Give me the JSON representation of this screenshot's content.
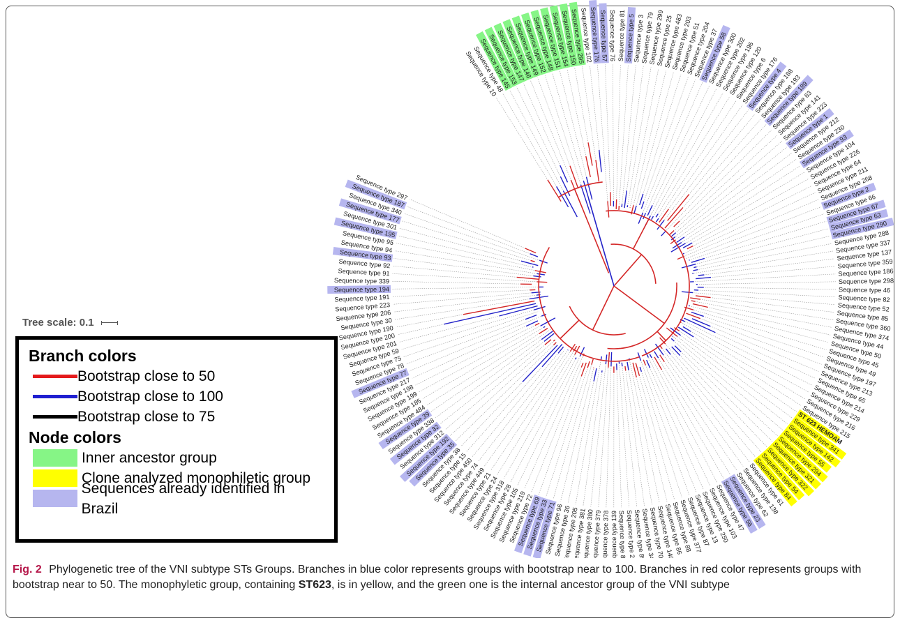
{
  "tree_scale_label": "Tree scale: 0.1",
  "legend": {
    "branch_title": "Branch colors",
    "branches": [
      {
        "label": "Bootstrap close to 50",
        "color": "#e41a1c"
      },
      {
        "label": "Bootstrap close to 100",
        "color": "#1f1fd0"
      },
      {
        "label": "Bootstrap close to 75",
        "color": "#000000"
      }
    ],
    "node_title": "Node colors",
    "nodes": [
      {
        "label": "Inner ancestor group",
        "color": "#86f586"
      },
      {
        "label": "Clone analyzed monophiletic group",
        "color": "#ffff00"
      },
      {
        "label": "Sequences already identified in Brazil",
        "color": "#b6b6ef"
      }
    ]
  },
  "caption": {
    "figure": "Fig. 2",
    "text_before": "Phylogenetic tree of the VNI subtype STs Groups. Branches in blue color represents groups with bootstrap near to 100. Branches in red color represents groups with bootstrap near to 50. The monophyletic group, containing ",
    "bold": "ST623",
    "text_after": ", is in yellow, and the green one is the internal ancestor group of the VNI subtype"
  },
  "colors": {
    "red_branch": "#d42828",
    "blue_branch": "#2323c8",
    "inner": "#86f586",
    "clone": "#ffff00",
    "brazil": "#b6b6ef"
  },
  "tips": [
    {
      "label": "Sequence type 10",
      "group": ""
    },
    {
      "label": "Sequence type 48",
      "group": ""
    },
    {
      "label": "Sequence type 145",
      "group": "inner"
    },
    {
      "label": "Sequence type 153",
      "group": "inner"
    },
    {
      "label": "Sequence type 147",
      "group": "inner"
    },
    {
      "label": "Sequence type 146",
      "group": "inner"
    },
    {
      "label": "Sequence type 149",
      "group": "inner"
    },
    {
      "label": "Sequence type 152",
      "group": "inner"
    },
    {
      "label": "Sequence type 148",
      "group": "inner"
    },
    {
      "label": "Sequence type 151",
      "group": "inner"
    },
    {
      "label": "Sequence type 154",
      "group": "inner"
    },
    {
      "label": "Sequence type 150",
      "group": "inner"
    },
    {
      "label": "Sequence type 295",
      "group": "inner"
    },
    {
      "label": "Sequence type 102",
      "group": ""
    },
    {
      "label": "Sequence type 176",
      "group": "brazil"
    },
    {
      "label": "Sequence type 57",
      "group": "brazil"
    },
    {
      "label": "Sequence type 76",
      "group": ""
    },
    {
      "label": "Sequence type 81",
      "group": ""
    },
    {
      "label": "Sequence type 5",
      "group": "brazil"
    },
    {
      "label": "Sequence type 3",
      "group": ""
    },
    {
      "label": "Sequence type 79",
      "group": ""
    },
    {
      "label": "Sequence type 299",
      "group": ""
    },
    {
      "label": "Sequence type 25",
      "group": ""
    },
    {
      "label": "Sequence type 483",
      "group": ""
    },
    {
      "label": "Sequence type 203",
      "group": ""
    },
    {
      "label": "Sequence type 51",
      "group": ""
    },
    {
      "label": "Sequence type 204",
      "group": ""
    },
    {
      "label": "Sequence type 37",
      "group": ""
    },
    {
      "label": "Sequence type 58",
      "group": "brazil"
    },
    {
      "label": "Sequence type 300",
      "group": ""
    },
    {
      "label": "Sequence type 202",
      "group": ""
    },
    {
      "label": "Sequence type 196",
      "group": ""
    },
    {
      "label": "Sequence type 120",
      "group": ""
    },
    {
      "label": "Sequence type 6",
      "group": ""
    },
    {
      "label": "Sequence type 176",
      "group": ""
    },
    {
      "label": "Sequence type 4",
      "group": "brazil"
    },
    {
      "label": "Sequence type 188",
      "group": ""
    },
    {
      "label": "Sequence type 193",
      "group": ""
    },
    {
      "label": "Sequence type 189",
      "group": "brazil"
    },
    {
      "label": "Sequence type 63",
      "group": ""
    },
    {
      "label": "Sequence type 141",
      "group": ""
    },
    {
      "label": "Sequence type 323",
      "group": ""
    },
    {
      "label": "Sequence type 1",
      "group": "brazil"
    },
    {
      "label": "Sequence type 212",
      "group": ""
    },
    {
      "label": "Sequence type 230",
      "group": ""
    },
    {
      "label": "Sequence type 93",
      "group": "brazil"
    },
    {
      "label": "Sequence type 104",
      "group": ""
    },
    {
      "label": "Sequence type 226",
      "group": ""
    },
    {
      "label": "Sequence type 64",
      "group": ""
    },
    {
      "label": "Sequence type 211",
      "group": ""
    },
    {
      "label": "Sequence type 268",
      "group": ""
    },
    {
      "label": "Sequence type 2",
      "group": "brazil"
    },
    {
      "label": "Sequence type 66",
      "group": ""
    },
    {
      "label": "Sequence type 67",
      "group": "brazil"
    },
    {
      "label": "Sequence type 63",
      "group": "brazil"
    },
    {
      "label": "Sequence type 290",
      "group": "brazil"
    },
    {
      "label": "Sequence type 288",
      "group": ""
    },
    {
      "label": "Sequence type 337",
      "group": ""
    },
    {
      "label": "Sequence type 137",
      "group": ""
    },
    {
      "label": "Sequence type 359",
      "group": ""
    },
    {
      "label": "Sequence type 186",
      "group": ""
    },
    {
      "label": "Sequence type 298",
      "group": ""
    },
    {
      "label": "Sequence type 46",
      "group": ""
    },
    {
      "label": "Sequence type 82",
      "group": ""
    },
    {
      "label": "Sequence type 52",
      "group": ""
    },
    {
      "label": "Sequence type 85",
      "group": ""
    },
    {
      "label": "Sequence type 360",
      "group": ""
    },
    {
      "label": "Sequence type 374",
      "group": ""
    },
    {
      "label": "Sequence type 44",
      "group": ""
    },
    {
      "label": "Sequence type 50",
      "group": ""
    },
    {
      "label": "Sequence type 45",
      "group": ""
    },
    {
      "label": "Sequence type 49",
      "group": ""
    },
    {
      "label": "Sequence type 197",
      "group": ""
    },
    {
      "label": "Sequence type 213",
      "group": ""
    },
    {
      "label": "Sequence type 65",
      "group": ""
    },
    {
      "label": "Sequence type 214",
      "group": ""
    },
    {
      "label": "Sequence type 229",
      "group": ""
    },
    {
      "label": "Sequence type 216",
      "group": ""
    },
    {
      "label": "Sequence type 215",
      "group": ""
    },
    {
      "label": "ST 623 HEMOAM",
      "group": "clone"
    },
    {
      "label": "Sequence type 341",
      "group": "clone"
    },
    {
      "label": "Sequence type 142",
      "group": "clone"
    },
    {
      "label": "Sequence type 55",
      "group": "clone"
    },
    {
      "label": "Sequence type 294",
      "group": "clone"
    },
    {
      "label": "Sequence type 321",
      "group": "clone"
    },
    {
      "label": "Sequence type 322",
      "group": "clone"
    },
    {
      "label": "Sequence type 54",
      "group": "clone"
    },
    {
      "label": "Sequence type 84",
      "group": "clone"
    },
    {
      "label": "Sequence type 61",
      "group": ""
    },
    {
      "label": "Sequence type 138",
      "group": ""
    },
    {
      "label": "Sequence type 62",
      "group": ""
    },
    {
      "label": "Sequence type 23",
      "group": "brazil"
    },
    {
      "label": "Sequence type 56",
      "group": "brazil"
    },
    {
      "label": "Sequence type 47",
      "group": ""
    },
    {
      "label": "Sequence type 103",
      "group": ""
    },
    {
      "label": "Sequence type 250",
      "group": ""
    },
    {
      "label": "Sequence type 13",
      "group": ""
    },
    {
      "label": "Sequence type 87",
      "group": ""
    },
    {
      "label": "Sequence type 377",
      "group": ""
    },
    {
      "label": "Sequence type 88",
      "group": ""
    },
    {
      "label": "Sequence type 86",
      "group": ""
    },
    {
      "label": "Sequence type 140",
      "group": ""
    },
    {
      "label": "Sequence type 70",
      "group": ""
    },
    {
      "label": "Sequence type 34",
      "group": ""
    },
    {
      "label": "Sequence type 89",
      "group": ""
    },
    {
      "label": "Sequence type 22",
      "group": ""
    },
    {
      "label": "Sequence type 80",
      "group": ""
    },
    {
      "label": "Sequence type 139",
      "group": ""
    },
    {
      "label": "Sequence type 378",
      "group": ""
    },
    {
      "label": "Sequence type 379",
      "group": ""
    },
    {
      "label": "Sequence type 380",
      "group": ""
    },
    {
      "label": "Sequence type 381",
      "group": ""
    },
    {
      "label": "Sequence type 205",
      "group": ""
    },
    {
      "label": "Sequence type 36",
      "group": ""
    },
    {
      "label": "Sequence type 96",
      "group": ""
    },
    {
      "label": "Sequence type 71",
      "group": "brazil"
    },
    {
      "label": "Sequence type 33",
      "group": "brazil"
    },
    {
      "label": "Sequence type 69",
      "group": "brazil"
    },
    {
      "label": "Sequence type 72",
      "group": ""
    },
    {
      "label": "Sequence type 219",
      "group": ""
    },
    {
      "label": "Sequence type 105",
      "group": ""
    },
    {
      "label": "Sequence type 28",
      "group": ""
    },
    {
      "label": "Sequence type 318",
      "group": ""
    },
    {
      "label": "Sequence type 24",
      "group": ""
    },
    {
      "label": "Sequence type 21",
      "group": ""
    },
    {
      "label": "Sequence type 449",
      "group": ""
    },
    {
      "label": "Sequence type 74",
      "group": ""
    },
    {
      "label": "Sequence type 450",
      "group": ""
    },
    {
      "label": "Sequence type 15",
      "group": ""
    },
    {
      "label": "Sequence type 38",
      "group": ""
    },
    {
      "label": "Sequence type 35",
      "group": "brazil"
    },
    {
      "label": "Sequence type 192",
      "group": "brazil"
    },
    {
      "label": "Sequence type 312",
      "group": ""
    },
    {
      "label": "Sequence type 32",
      "group": "brazil"
    },
    {
      "label": "Sequence type 338",
      "group": ""
    },
    {
      "label": "Sequence type 39",
      "group": "brazil"
    },
    {
      "label": "Sequence type 484",
      "group": ""
    },
    {
      "label": "Sequence type 185",
      "group": ""
    },
    {
      "label": "Sequence type 199",
      "group": ""
    },
    {
      "label": "Sequence type 198",
      "group": ""
    },
    {
      "label": "Sequence type 217",
      "group": ""
    },
    {
      "label": "Sequence type 77",
      "group": "brazil"
    },
    {
      "label": "Sequence type 78",
      "group": ""
    },
    {
      "label": "Sequence type 75",
      "group": ""
    },
    {
      "label": "Sequence type 59",
      "group": ""
    },
    {
      "label": "Sequence type 201",
      "group": ""
    },
    {
      "label": "Sequence type 200",
      "group": ""
    },
    {
      "label": "Sequence type 190",
      "group": ""
    },
    {
      "label": "Sequence type 30",
      "group": ""
    },
    {
      "label": "Sequence type 206",
      "group": ""
    },
    {
      "label": "Sequence type 223",
      "group": ""
    },
    {
      "label": "Sequence type 191",
      "group": ""
    },
    {
      "label": "Sequence type 194",
      "group": "brazil"
    },
    {
      "label": "Sequence type 339",
      "group": ""
    },
    {
      "label": "Sequence type 91",
      "group": ""
    },
    {
      "label": "Sequence type 92",
      "group": ""
    },
    {
      "label": "Sequence type 93",
      "group": "brazil"
    },
    {
      "label": "Sequence type 94",
      "group": ""
    },
    {
      "label": "Sequence type 95",
      "group": ""
    },
    {
      "label": "Sequence type 195",
      "group": "brazil"
    },
    {
      "label": "Sequence type 301",
      "group": ""
    },
    {
      "label": "Sequence type 177",
      "group": "brazil"
    },
    {
      "label": "Sequence type 340",
      "group": ""
    },
    {
      "label": "Sequence type 187",
      "group": "brazil"
    },
    {
      "label": "Sequence type 297",
      "group": ""
    }
  ]
}
